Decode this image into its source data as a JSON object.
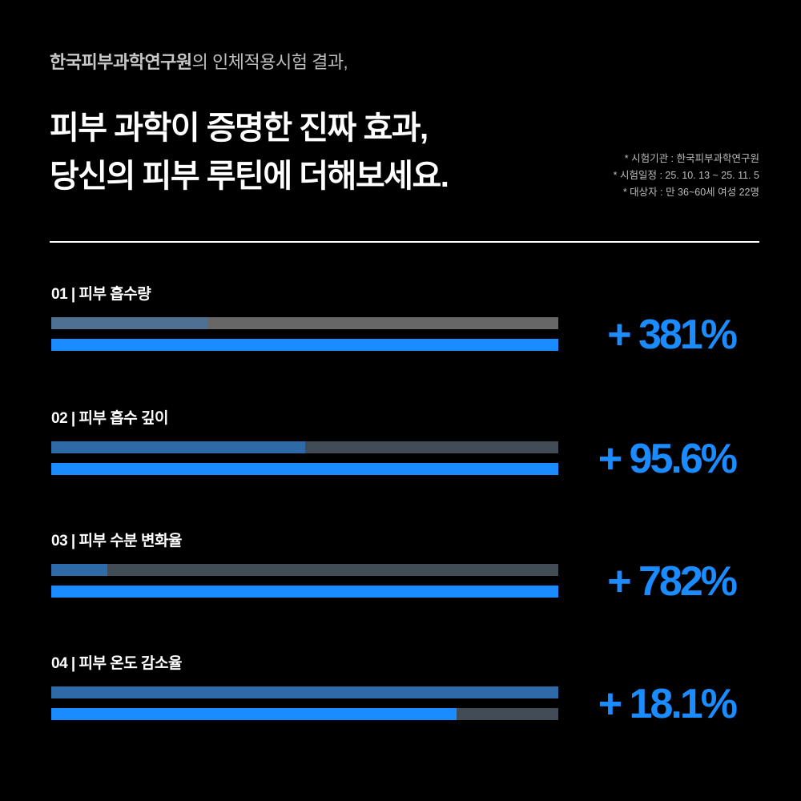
{
  "header": {
    "org": "한국피부과학연구원",
    "subtitle_rest": "의 인체적용시험 결과,",
    "title_line1": "피부 과학이 증명한 진짜 효과,",
    "title_line2": "당신의 피부 루틴에 더해보세요."
  },
  "notes": [
    "* 시험기관 : 한국피부과학연구원",
    "* 시험일정 : 25. 10. 13 ~ 25. 11. 5",
    "* 대상자 : 만 36~60세 여성 22명"
  ],
  "colors": {
    "accent": "#1a8cff"
  },
  "metrics": [
    {
      "label": "01 | 피부 흡수량",
      "value": "+ 381%",
      "before_fraction": 0.31,
      "after_fraction": 1.0,
      "before_color": "#4e7093",
      "track": "#676767"
    },
    {
      "label": "02 | 피부 흡수 깊이",
      "value": "+ 95.6%",
      "before_fraction": 0.5,
      "after_fraction": 1.0,
      "before_color": "#2f6aa8",
      "track": "#424c56"
    },
    {
      "label": "03 | 피부 수분 변화율",
      "value": "+ 782%",
      "before_fraction": 0.11,
      "after_fraction": 1.0,
      "before_color": "#2f6aa8",
      "track": "#424c56"
    },
    {
      "label": "04 | 피부 온도 감소율",
      "value": "+ 18.1%",
      "before_fraction": 1.0,
      "after_fraction": 0.8,
      "before_color": "#2f6aa8",
      "track": "#424c56"
    }
  ]
}
